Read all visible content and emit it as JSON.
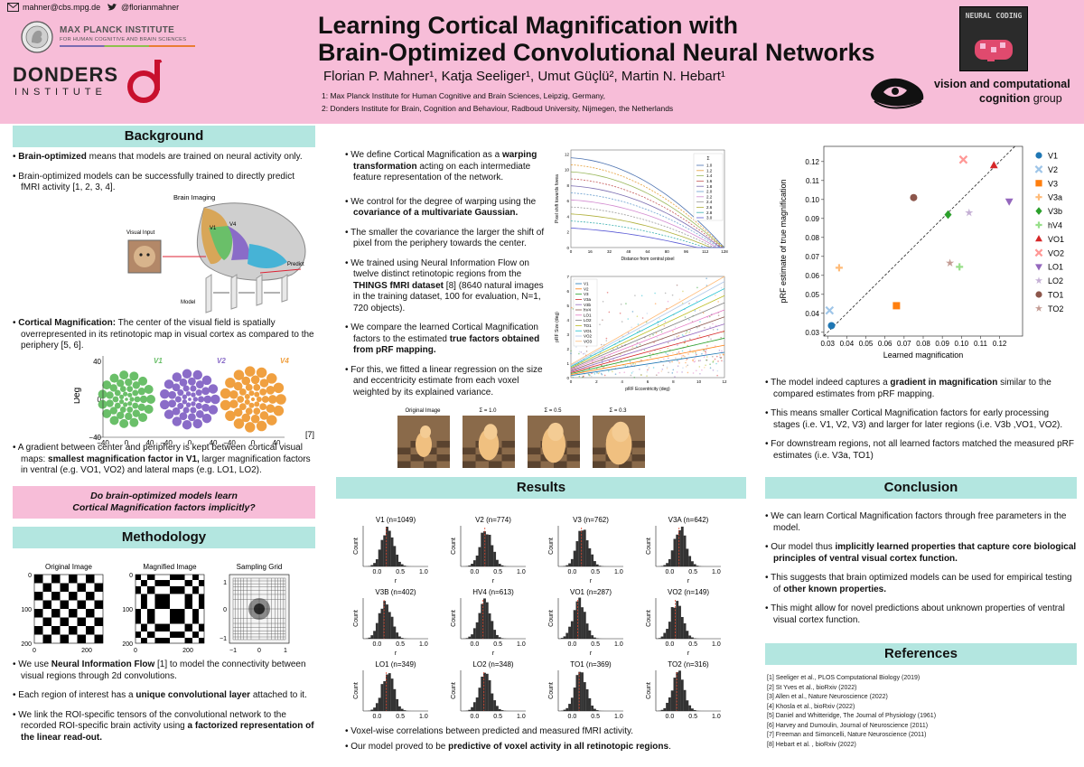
{
  "header": {
    "email": "mahner@cbs.mpg.de",
    "twitter": "@florianmahner",
    "mpi_logo_line1": "MAX PLANCK INSTITUTE",
    "mpi_logo_line2": "FOR HUMAN COGNITIVE AND BRAIN SCIENCES",
    "donders_line1": "DONDERS",
    "donders_line2": "INSTITUTE",
    "title_line1": "Learning Cortical Magnification with",
    "title_line2": "Brain-Optimized Convolutional Neural Networks",
    "authors": "Florian P. Mahner¹, Katja Seeliger¹, Umut Güçlü²,  Martin N. Hebart¹",
    "affiliation1": "1: Max Planck Institute for Human Cognitive and Brain Sciences, Leipzig, Germany,",
    "affiliation2": "2: Donders Institute for Brain, Cognition and Behaviour, Radboud University, Nijmegen, the Netherlands",
    "neural_coding_logo": "NEURAL CODING",
    "vcc_line1": "vision and computational",
    "vcc_line2a": "cognition",
    "vcc_line2b": " group"
  },
  "background": {
    "heading": "Background",
    "p1_bold": "Brain-optimized",
    "p1_rest": " means that models are trained on neural activity only.",
    "p2": "Brain-optimized models can be successfully trained to directly predict fMRI activity [1, 2, 3, 4].",
    "fig_brain_imaging": "Brain Imaging",
    "fig_visual_input": "Visual Input",
    "fig_predict": "Predict",
    "fig_model": "Model",
    "fig_v1": "V1",
    "fig_v4": "V4",
    "p3_bold": "Cortical Magnification:",
    "p3_rest": " The center of the visual field is spatially overrepresented in its retinotopic map in visual cortex as compared to the periphery [5, 6].",
    "p4_start": "A gradient between center and periphery is kept between cortical visual maps: ",
    "p4_bold": "smallest magnification factor in V1,",
    "p4_rest": " larger magnification factors in ventral (e.g. VO1, VO2) and lateral maps (e.g. LO1, LO2).",
    "question_line1": "Do brain-optimized models learn",
    "question_line2": "Cortical Magnification factors implicitly?"
  },
  "dot_figure": {
    "panels": [
      "V1",
      "V2",
      "V4"
    ],
    "colors": [
      "#6abf69",
      "#8a6cc8",
      "#f0a040"
    ],
    "ylabel": "Deg",
    "xlabel": "Deg",
    "yticks": [
      "40",
      "0",
      "−40"
    ],
    "xticks": [
      "−40",
      "0",
      "40"
    ],
    "citation": "[7]"
  },
  "methodology": {
    "heading": "Methodology",
    "titles": [
      "Original Image",
      "Magnified Image",
      "Sampling Grid"
    ],
    "yticks": [
      "0",
      "100",
      "200"
    ],
    "xticks": [
      "0",
      "200"
    ],
    "grid_yticks": [
      "1",
      "0",
      "−1"
    ],
    "grid_xticks": [
      "−1",
      "0",
      "1"
    ],
    "b1_start": "We use ",
    "b1_bold": "Neural Information Flow",
    "b1_rest": " [1] to model the connectivity between visual regions through 2d convolutions.",
    "b2_start": "Each region of interest has a ",
    "b2_bold": "unique convolutional layer",
    "b2_rest": " attached to it.",
    "b3_start": "We link the ROI-specific tensors of the convolutional network to the recorded ROI-specific brain activity using ",
    "b3_bold": "a factorized representation of the linear read-out."
  },
  "middle": {
    "b1_start": "We define Cortical Magnification as a ",
    "b1_bold": "warping transformation",
    "b1_rest": " acting on each intermediate feature representation of the network.",
    "b2_start": "We control for the degree of warping using the ",
    "b2_bold": "covariance of a multivariate Gaussian.",
    "b3": "The smaller the covariance the larger the shift of pixel from the periphery towards the center.",
    "b4_start": "We trained using Neural Information Flow on twelve distinct retinotopic regions from the ",
    "b4_bold": "THINGS fMRI dataset",
    "b4_rest": " [8] (8640 natural images in the training dataset, 100 for evaluation, N=1, 720 objects).",
    "b5_start": "We compare the learned Cortical Magnification factors to the estimated ",
    "b5_bold": "true factors obtained from pRF mapping.",
    "b6": "For this, we fitted a linear regression on the size and eccentricity estimate from each voxel weighted by its explained variance."
  },
  "shift_chart": {
    "ylabel": "Pixel shift towards fovea",
    "xlabel": "Distance from central pixel",
    "legend_title": "Σ",
    "legend": [
      "1.0",
      "1.2",
      "1.4",
      "1.6",
      "1.8",
      "2.0",
      "2.2",
      "2.4",
      "2.6",
      "2.8",
      "3.0"
    ],
    "yticks": [
      "0",
      "2",
      "4",
      "6",
      "8",
      "10",
      "12"
    ],
    "xticks": [
      "0",
      "16",
      "32",
      "48",
      "64",
      "80",
      "96",
      "112",
      "128"
    ]
  },
  "prf_chart": {
    "ylabel": "pRF Size (deg)",
    "xlabel": "pRF Eccentricity (deg)",
    "legend": [
      "V1",
      "V2",
      "V3",
      "V3a",
      "V3b",
      "hV4",
      "LO1",
      "LO2",
      "TO1",
      "VO1",
      "VO2",
      "VO3"
    ],
    "yticks": [
      "0",
      "1",
      "2",
      "3",
      "4",
      "5",
      "6",
      "7"
    ],
    "xticks": [
      "0",
      "2",
      "4",
      "6",
      "8",
      "10",
      "12"
    ]
  },
  "warp_images": {
    "labels": [
      "Original Image",
      "Σ = 1.0",
      "Σ = 0.5",
      "Σ = 0.3"
    ]
  },
  "results": {
    "heading": "Results",
    "ylabel": "Count",
    "xlabel": "r",
    "xticks": [
      "0.0",
      "0.5",
      "1.0"
    ],
    "xticks_short": [
      "0",
      "1"
    ],
    "panels": [
      {
        "title": "V1 (n=1049)",
        "mean": 0.2
      },
      {
        "title": "V2 (n=774)",
        "mean": 0.22
      },
      {
        "title": "V3 (n=762)",
        "mean": 0.2
      },
      {
        "title": "V3A (n=642)",
        "mean": 0.2
      },
      {
        "title": "V3B (n=402)",
        "mean": 0.15
      },
      {
        "title": "HV4 (n=613)",
        "mean": 0.18
      },
      {
        "title": "VO1 (n=287)",
        "mean": 0.12
      },
      {
        "title": "VO2 (n=149)",
        "mean": 0.12
      },
      {
        "title": "LO1 (n=349)",
        "mean": 0.2
      },
      {
        "title": "LO2 (n=348)",
        "mean": 0.2
      },
      {
        "title": "TO1 (n=369)",
        "mean": 0.15
      },
      {
        "title": "TO2 (n=316)",
        "mean": 0.15
      }
    ],
    "b1": "Voxel-wise correlations between predicted and measured fMRI activity.",
    "b2_start": "Our model proved to be ",
    "b2_bold": "predictive of voxel activity in all retinotopic regions",
    "b2_end": "."
  },
  "chart_data": {
    "type": "scatter",
    "xlabel": "Learned magnification",
    "ylabel": "pRF estimate of true magnification",
    "xlim": [
      0.028,
      0.132
    ],
    "ylim": [
      0.028,
      0.128
    ],
    "xticks": [
      0.03,
      0.04,
      0.05,
      0.06,
      0.07,
      0.08,
      0.09,
      0.1,
      0.11,
      0.12
    ],
    "yticks": [
      0.03,
      0.04,
      0.05,
      0.06,
      0.07,
      0.08,
      0.09,
      0.1,
      0.11,
      0.12
    ],
    "identity_line": true,
    "legend_placement": "right",
    "series": [
      {
        "name": "V1",
        "color": "#1f77b4",
        "marker": "circle",
        "x": 0.032,
        "y": 0.0335
      },
      {
        "name": "V2",
        "color": "#9ec5e8",
        "marker": "x",
        "x": 0.031,
        "y": 0.0415
      },
      {
        "name": "V3",
        "color": "#ff7f0e",
        "marker": "square",
        "x": 0.066,
        "y": 0.044
      },
      {
        "name": "V3a",
        "color": "#ffbb78",
        "marker": "plus",
        "x": 0.036,
        "y": 0.064
      },
      {
        "name": "V3b",
        "color": "#2ca02c",
        "marker": "diamond",
        "x": 0.093,
        "y": 0.092
      },
      {
        "name": "hV4",
        "color": "#98df8a",
        "marker": "plus",
        "x": 0.099,
        "y": 0.0645
      },
      {
        "name": "VO1",
        "color": "#d62728",
        "marker": "triangle-up",
        "x": 0.117,
        "y": 0.118
      },
      {
        "name": "VO2",
        "color": "#ff9896",
        "marker": "x",
        "x": 0.101,
        "y": 0.121
      },
      {
        "name": "LO1",
        "color": "#9467bd",
        "marker": "triangle-down",
        "x": 0.125,
        "y": 0.099
      },
      {
        "name": "LO2",
        "color": "#c5b0d5",
        "marker": "star",
        "x": 0.104,
        "y": 0.093
      },
      {
        "name": "TO1",
        "color": "#8c564b",
        "marker": "circle",
        "x": 0.075,
        "y": 0.101
      },
      {
        "name": "TO2",
        "color": "#c49c94",
        "marker": "star",
        "x": 0.094,
        "y": 0.0665
      }
    ]
  },
  "right": {
    "b1_start": "The model indeed captures a ",
    "b1_bold": "gradient in magnification",
    "b1_rest": " similar to the compared estimates from pRF mapping.",
    "b2": "This means smaller Cortical Magnification factors for early processing stages (i.e. V1, V2, V3) and larger for later regions (i.e. V3b ,VO1, VO2).",
    "b3": "For downstream regions, not all learned factors matched the measured pRF estimates (i.e. V3a, TO1)"
  },
  "conclusion": {
    "heading": "Conclusion",
    "b1": "We can learn Cortical Magnification factors through free parameters in the model.",
    "b2_start": "Our model thus ",
    "b2_bold": "implicitly learned properties that capture core biological principles of ventral visual cortex function.",
    "b3_start": "This suggests that brain optimized models can be used for empirical testing of ",
    "b3_bold": "other known properties.",
    "b4": "This might allow for novel predictions about unknown properties of ventral visual cortex function."
  },
  "references": {
    "heading": "References",
    "items": [
      "[1] Seeliger et al., PLOS Computational  Biology (2019)",
      "[2] St Yves et al., bioRxiv (2022)",
      "[3] Allen et al., Nature Neuroscience (2022)",
      "[4] Khosla et al., bioRxiv (2022)",
      "[5] Daniel and Whitteridge, The Journal of Physiology (1961)",
      "[6] Harvey and Dumoulin, Journal of Neuroscience (2011)",
      "[7] Freeman and Simoncelli, Nature Neuroscience (2011)",
      "[8] Hebart et al. , bioRxiv (2022)"
    ]
  }
}
